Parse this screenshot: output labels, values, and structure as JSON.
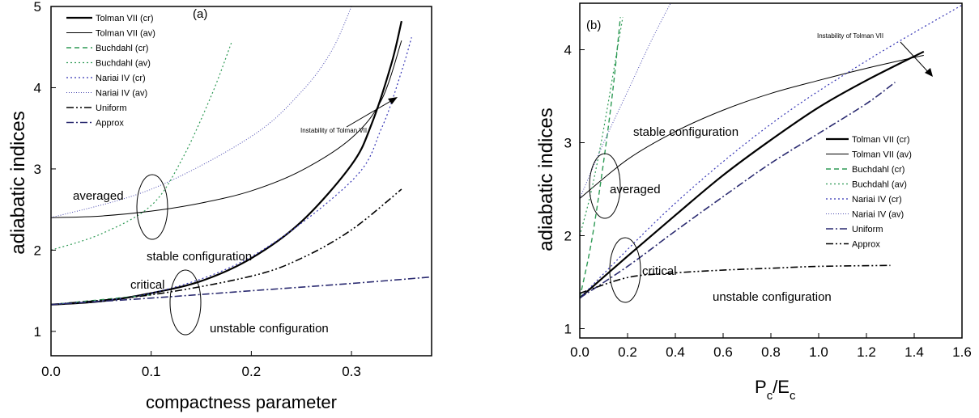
{
  "chart_data": [
    {
      "type": "line",
      "panel_label": "(a)",
      "xlabel": "compactness parameter",
      "ylabel": "adiabatic indices",
      "xlim": [
        0,
        0.38
      ],
      "ylim": [
        0.7,
        5
      ],
      "xticks": [
        "0.0",
        "0.1",
        "0.2",
        "0.3"
      ],
      "yticks": [
        "1",
        "2",
        "3",
        "4",
        "5"
      ],
      "legend_placement": "top-left",
      "series": [
        {
          "name": "Tolman VII (cr)",
          "style": "thick-solid",
          "color": "#000000",
          "x": [
            0,
            0.05,
            0.1,
            0.15,
            0.2,
            0.25,
            0.3,
            0.32,
            0.34,
            0.35
          ],
          "y": [
            1.33,
            1.37,
            1.47,
            1.62,
            1.9,
            2.35,
            3.05,
            3.55,
            4.3,
            4.82
          ]
        },
        {
          "name": "Tolman VII (av)",
          "style": "thin-solid",
          "color": "#000000",
          "x": [
            0,
            0.05,
            0.1,
            0.15,
            0.2,
            0.25,
            0.3,
            0.33,
            0.35
          ],
          "y": [
            2.4,
            2.42,
            2.48,
            2.58,
            2.73,
            2.98,
            3.38,
            3.85,
            4.58
          ]
        },
        {
          "name": "Buchdahl  (cr)",
          "style": "dashed",
          "color": "#2e9a55",
          "x": [
            0,
            0.1
          ],
          "y": [
            1.33,
            1.45
          ]
        },
        {
          "name": "Buchdahl  (av)",
          "style": "dotted",
          "color": "#2e9a55",
          "x": [
            0,
            0.05,
            0.1,
            0.13,
            0.16,
            0.18
          ],
          "y": [
            2.0,
            2.2,
            2.55,
            3.1,
            3.9,
            4.55
          ]
        },
        {
          "name": "Nariai IV  (cr)",
          "style": "dotted",
          "color": "#3535b5",
          "x": [
            0,
            0.1,
            0.2,
            0.3,
            0.33,
            0.35,
            0.36
          ],
          "y": [
            1.33,
            1.47,
            1.92,
            2.85,
            3.5,
            4.2,
            4.62
          ]
        },
        {
          "name": "Nariai IV  (av)",
          "style": "fine-dotted",
          "color": "#4a4ab0",
          "x": [
            0,
            0.1,
            0.2,
            0.25,
            0.28,
            0.3
          ],
          "y": [
            2.4,
            2.75,
            3.4,
            3.95,
            4.45,
            5.0
          ]
        },
        {
          "name": "Uniform",
          "style": "dash-dot-dot",
          "color": "#000000",
          "x": [
            0,
            0.1,
            0.2,
            0.25,
            0.3,
            0.35
          ],
          "y": [
            1.33,
            1.45,
            1.68,
            1.9,
            2.25,
            2.75
          ]
        },
        {
          "name": "Approx",
          "style": "dash-dot",
          "color": "#2a2a70",
          "x": [
            0,
            0.1,
            0.2,
            0.3,
            0.38
          ],
          "y": [
            1.33,
            1.41,
            1.5,
            1.59,
            1.67
          ]
        }
      ],
      "annotations": [
        "averaged",
        "stable configuration",
        "critical",
        "unstable configuration",
        "Instability of Tolman VII"
      ]
    },
    {
      "type": "line",
      "panel_label": "(b)",
      "xlabel_main": "P",
      "xlabel_sub1": "c",
      "xlabel_mid": "/E",
      "xlabel_sub2": "c",
      "ylabel": "adiabatic indices",
      "xlim": [
        0,
        1.6
      ],
      "ylim": [
        0.9,
        4.5
      ],
      "xticks": [
        "0.0",
        "0.2",
        "0.4",
        "0.6",
        "0.8",
        "1.0",
        "1.2",
        "1.4",
        "1.6"
      ],
      "yticks": [
        "1",
        "2",
        "3",
        "4"
      ],
      "legend_placement": "center-right",
      "series": [
        {
          "name": "Tolman VII (cr)",
          "style": "thick-solid",
          "color": "#000000",
          "x": [
            0,
            0.2,
            0.4,
            0.6,
            0.8,
            1.0,
            1.2,
            1.44
          ],
          "y": [
            1.33,
            1.78,
            2.22,
            2.65,
            3.03,
            3.38,
            3.67,
            3.98
          ]
        },
        {
          "name": "Tolman VII (av)",
          "style": "thin-solid",
          "color": "#000000",
          "x": [
            0,
            0.2,
            0.4,
            0.6,
            0.8,
            1.0,
            1.2,
            1.44
          ],
          "y": [
            2.4,
            2.82,
            3.12,
            3.35,
            3.53,
            3.67,
            3.8,
            3.94
          ]
        },
        {
          "name": "Buchdahl  (cr)",
          "style": "dashed",
          "color": "#2e9a55",
          "x": [
            0,
            0.05,
            0.1,
            0.14,
            0.17
          ],
          "y": [
            1.33,
            1.95,
            2.8,
            3.6,
            4.35
          ]
        },
        {
          "name": "Buchdahl  (av)",
          "style": "dotted",
          "color": "#2e9a55",
          "x": [
            0,
            0.05,
            0.1,
            0.15,
            0.18
          ],
          "y": [
            2.0,
            2.5,
            3.15,
            3.9,
            4.35
          ]
        },
        {
          "name": "Nariai IV  (cr)",
          "style": "dotted",
          "color": "#3535b5",
          "x": [
            0,
            0.4,
            0.8,
            1.2,
            1.6
          ],
          "y": [
            1.33,
            2.35,
            3.2,
            3.88,
            4.48
          ]
        },
        {
          "name": "Nariai IV  (av)",
          "style": "fine-dotted",
          "color": "#4a4ab0",
          "x": [
            0,
            0.1,
            0.2,
            0.3,
            0.38
          ],
          "y": [
            2.4,
            3.0,
            3.55,
            4.1,
            4.5
          ]
        },
        {
          "name": "Uniform",
          "style": "dash-dot",
          "color": "#2a2a70",
          "x": [
            0,
            0.2,
            0.4,
            0.6,
            0.8,
            1.0,
            1.2,
            1.32
          ],
          "y": [
            1.33,
            1.67,
            2.05,
            2.42,
            2.78,
            3.1,
            3.42,
            3.65
          ]
        },
        {
          "name": "Approx",
          "style": "dash-dot-dot",
          "color": "#000000",
          "x": [
            0,
            0.2,
            0.4,
            0.6,
            0.8,
            1.0,
            1.3
          ],
          "y": [
            1.38,
            1.55,
            1.6,
            1.63,
            1.65,
            1.67,
            1.68
          ]
        }
      ],
      "annotations": [
        "stable configuration",
        "averaged",
        "critical",
        "unstable configuration",
        "Instability of Tolman VII"
      ]
    }
  ]
}
